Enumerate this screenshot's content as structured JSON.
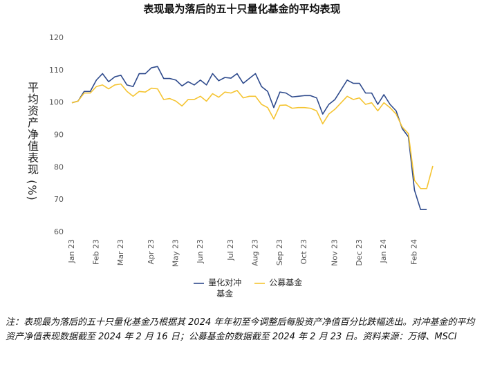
{
  "chart_data": {
    "type": "line",
    "title": "表现最为落后的五十只量化基金的平均表现",
    "y_label": "平均资产净值表现 (%)",
    "categories": [
      "Jan 23",
      null,
      null,
      null,
      "Feb 23",
      null,
      null,
      null,
      "Mar 23",
      null,
      null,
      null,
      null,
      "Apr 23",
      null,
      null,
      null,
      "May 23",
      null,
      null,
      null,
      "Jun 23",
      null,
      null,
      null,
      null,
      "Jul 23",
      null,
      null,
      null,
      "Aug 23",
      null,
      null,
      null,
      "Sep 23",
      null,
      null,
      null,
      "Oct 23",
      null,
      null,
      null,
      null,
      "Nov 23",
      null,
      null,
      null,
      "Dec 23",
      null,
      null,
      null,
      "Jan 24",
      null,
      null,
      null,
      null,
      "Feb 24",
      null,
      null,
      null
    ],
    "series": [
      {
        "name": "量化对冲基金",
        "color": "#2e4a8c",
        "values": [
          100,
          100.5,
          103.5,
          103.5,
          107,
          109,
          106.5,
          108,
          108.5,
          105.5,
          105,
          109,
          109,
          110.8,
          111.2,
          107.5,
          107.5,
          107,
          105.2,
          106.5,
          105.5,
          107,
          105.5,
          109,
          106.8,
          107.8,
          107.6,
          109,
          106,
          107.5,
          109,
          105,
          103.5,
          98.5,
          103.3,
          103,
          101.8,
          102,
          102.2,
          102.2,
          101.5,
          96.5,
          99.5,
          101,
          104,
          107,
          106,
          106,
          103,
          103,
          99.5,
          102.5,
          99.5,
          97.5,
          92,
          89.5,
          73,
          67,
          67,
          null
        ]
      },
      {
        "name": "公募基金",
        "color": "#f5c431",
        "values": [
          100,
          100.5,
          103,
          103,
          105,
          105.5,
          104.3,
          105.5,
          105.8,
          103.5,
          102,
          103.5,
          103.3,
          104.5,
          104.3,
          101,
          101.3,
          100.5,
          99,
          101,
          101,
          102,
          100.5,
          102.8,
          101.7,
          103.3,
          103,
          103.8,
          101.5,
          102,
          102,
          99.5,
          98.5,
          95,
          99.2,
          99.3,
          98.3,
          98.5,
          98.5,
          98.3,
          97.5,
          93.5,
          96.5,
          98,
          100,
          102,
          101,
          101.5,
          99.5,
          100,
          97.5,
          100,
          98.5,
          96.5,
          92.5,
          90.5,
          76,
          73.5,
          73.5,
          80.5
        ]
      }
    ],
    "ylim": [
      60,
      120
    ],
    "yticks": [
      60,
      70,
      80,
      90,
      100,
      110,
      120
    ],
    "grid": false,
    "legend": "bottom",
    "note": "注：表现最为落后的五十只量化基金乃根据其 2024 年年初至今调整后每股资产净值百分比跌幅选出。对冲基金的平均资产净值表现数据截至 2024 年 2 月 16 日；公募基金的数据截至 2024 年 2 月 23 日。资料来源：万得、MSCI"
  }
}
